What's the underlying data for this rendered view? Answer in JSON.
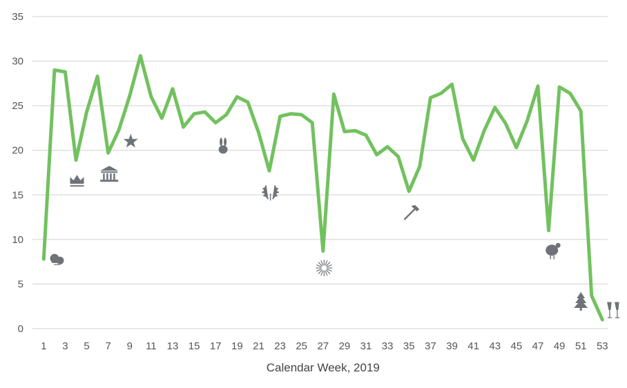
{
  "chart_data": {
    "type": "line",
    "xlabel": "Calendar Week, 2019",
    "ylabel": "",
    "ylim": [
      0,
      35
    ],
    "yticks": [
      0,
      5,
      10,
      15,
      20,
      25,
      30,
      35
    ],
    "xlim": [
      1,
      53
    ],
    "xticks": [
      1,
      3,
      5,
      7,
      9,
      11,
      13,
      15,
      17,
      19,
      21,
      23,
      25,
      27,
      29,
      31,
      33,
      35,
      37,
      39,
      41,
      43,
      45,
      47,
      49,
      51,
      53
    ],
    "grid": true,
    "series": [
      {
        "color": "#72c15f",
        "x": [
          1,
          2,
          3,
          4,
          5,
          6,
          7,
          8,
          9,
          10,
          11,
          12,
          13,
          14,
          15,
          16,
          17,
          18,
          19,
          20,
          21,
          22,
          23,
          24,
          25,
          26,
          27,
          28,
          29,
          30,
          31,
          32,
          33,
          34,
          35,
          36,
          37,
          38,
          39,
          40,
          41,
          42,
          43,
          44,
          45,
          46,
          47,
          48,
          49,
          50,
          51,
          52,
          53
        ],
        "y": [
          7.8,
          29.0,
          28.8,
          18.9,
          24.3,
          28.3,
          19.7,
          22.3,
          26.1,
          30.6,
          26.0,
          23.6,
          26.9,
          22.6,
          24.1,
          24.3,
          23.1,
          24.0,
          26.0,
          25.4,
          22.0,
          17.7,
          23.8,
          24.1,
          24.0,
          23.1,
          8.7,
          26.3,
          22.1,
          22.2,
          21.7,
          19.5,
          20.4,
          19.3,
          15.4,
          18.2,
          25.9,
          26.4,
          27.4,
          21.3,
          18.9,
          22.2,
          24.8,
          23.0,
          20.3,
          23.3,
          27.2,
          11.0,
          27.1,
          26.4,
          24.4,
          3.7,
          1.0
        ]
      }
    ],
    "annotations": [
      {
        "icon": "new-year-icon",
        "x": 2.2,
        "y": 7.8
      },
      {
        "icon": "crown-icon",
        "x": 4.1,
        "y": 16.7
      },
      {
        "icon": "capitol-icon",
        "x": 7.1,
        "y": 17.4
      },
      {
        "icon": "star-icon",
        "x": 9.1,
        "y": 21.0
      },
      {
        "icon": "rabbit-icon",
        "x": 17.7,
        "y": 20.4
      },
      {
        "icon": "laurel-wreath-icon",
        "x": 22.1,
        "y": 15.3
      },
      {
        "icon": "fireworks-icon",
        "x": 27.1,
        "y": 6.8
      },
      {
        "icon": "hammer-icon",
        "x": 35.2,
        "y": 13.0
      },
      {
        "icon": "turkey-icon",
        "x": 48.3,
        "y": 8.8
      },
      {
        "icon": "christmas-tree-icon",
        "x": 51.0,
        "y": 3.1
      },
      {
        "icon": "champagne-glasses-icon",
        "x": 54.0,
        "y": 2.0
      }
    ]
  }
}
